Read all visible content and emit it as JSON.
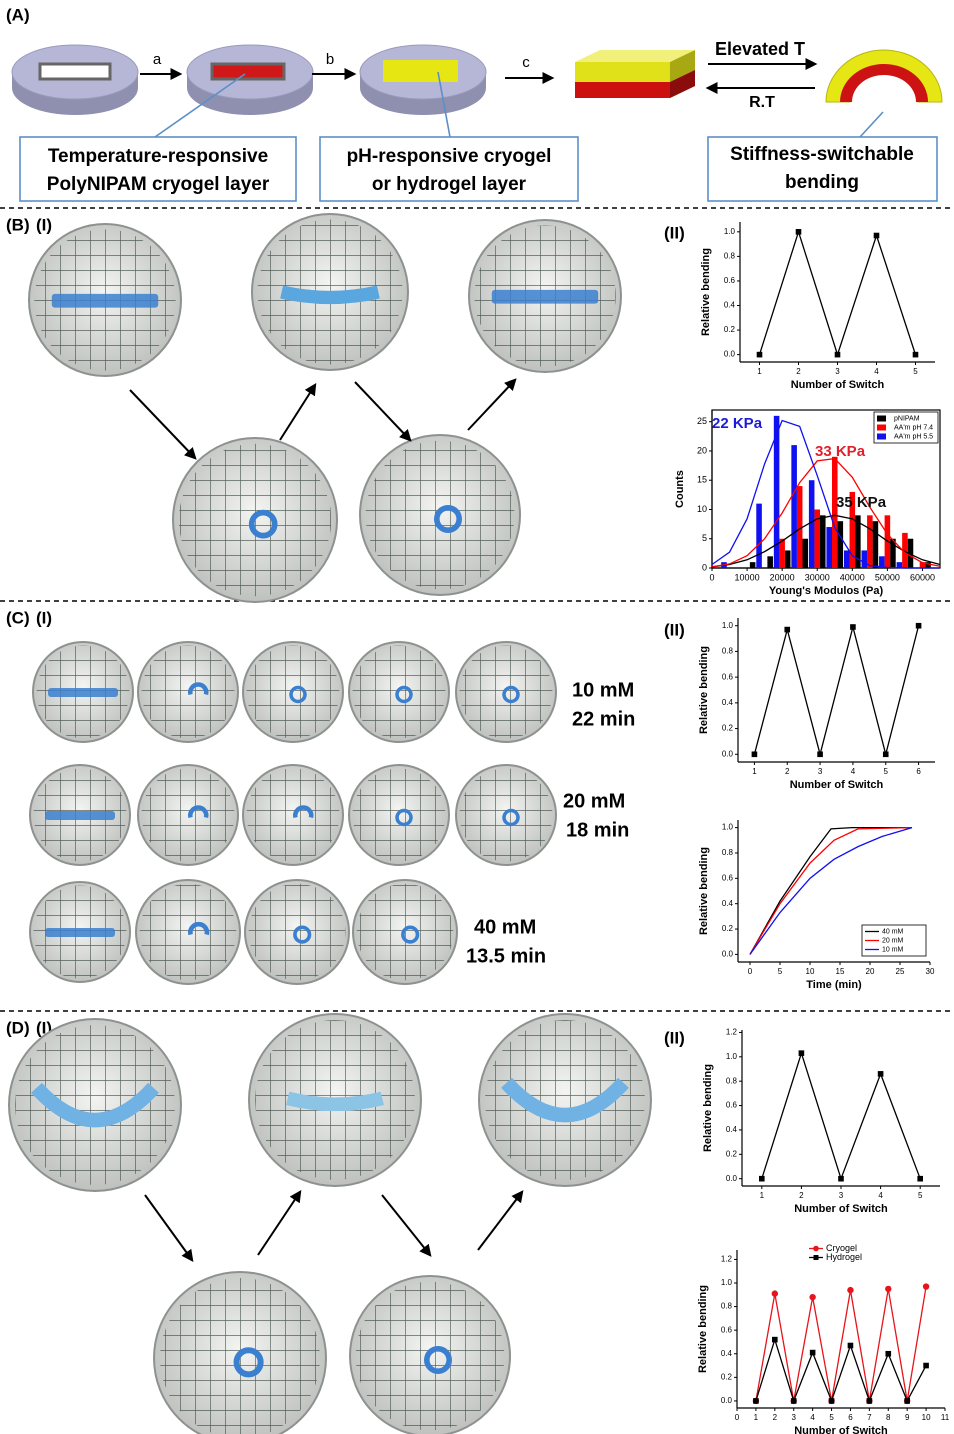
{
  "figure": {
    "panel_a": {
      "label": "(A)",
      "step_a": "a",
      "step_b": "b",
      "step_c": "c",
      "heat": "Elevated T",
      "cool": "R.T",
      "box1": [
        "Temperature-responsive",
        "PolyNIPAM cryogel layer"
      ],
      "box2": [
        "pH-responsive cryogel",
        "or hydrogel layer"
      ],
      "box3": [
        "Stiffness-switchable",
        "bending"
      ]
    },
    "panel_b": {
      "label": "(B)",
      "part1": "(I)",
      "part2": "(II)"
    },
    "panel_c": {
      "label": "(C)",
      "part1": "(I)",
      "part2": "(II)",
      "rows": [
        [
          "10 mM",
          "22 min"
        ],
        [
          "20 mM",
          "18 min"
        ],
        [
          "40 mM",
          "13.5 min"
        ]
      ]
    },
    "panel_d": {
      "label": "(D)",
      "part1": "(I)",
      "part2": "(II)"
    }
  },
  "chart_data": [
    {
      "type": "line",
      "xlabel": "Number of Switch",
      "ylabel": "Relative bending",
      "x": [
        1,
        2,
        3,
        4,
        5
      ],
      "series": [
        {
          "color": "#000000",
          "marker": "square",
          "values": [
            0,
            1,
            0,
            0.97,
            0
          ]
        }
      ],
      "xlim": [
        0.5,
        5.5
      ],
      "xticks": [
        1,
        2,
        3,
        4,
        5
      ],
      "ylim": [
        -0.06,
        1.08
      ],
      "yticks": [
        {
          "value": 0,
          "label": "0.0"
        },
        0.2,
        0.4,
        0.6,
        0.8,
        {
          "value": 1,
          "label": "1.0"
        }
      ]
    },
    {
      "type": "bar",
      "xlabel": "Young's Modulos (Pa)",
      "ylabel": "Counts",
      "legend": "upper right",
      "x": [
        5000,
        10000,
        15000,
        20000,
        25000,
        30000,
        35000,
        40000,
        45000,
        50000,
        55000,
        60000
      ],
      "series": [
        {
          "name": "pNIPAM",
          "color": "#000000",
          "values": [
            0,
            1,
            2,
            3,
            5,
            9,
            8,
            9,
            8,
            5,
            5,
            1
          ]
        },
        {
          "name": "AA'm pH 7.4",
          "color": "#ff0000",
          "values": [
            0,
            0,
            0,
            5,
            14,
            10,
            19,
            13,
            9,
            9,
            6,
            1
          ]
        },
        {
          "name": "AA'm pH 5.5",
          "color": "#1010f0",
          "values": [
            1,
            0,
            11,
            26,
            21,
            15,
            7,
            3,
            3,
            2,
            1,
            0
          ]
        }
      ],
      "fits": [
        {
          "color": "#000000",
          "x": [
            0,
            5000,
            10000,
            15000,
            20000,
            25000,
            30000,
            35000,
            40000,
            45000,
            50000,
            55000,
            60000,
            65000
          ],
          "values": [
            0.2,
            0.6,
            1.4,
            2.8,
            4.6,
            6.7,
            8.4,
            9,
            8.4,
            6.7,
            4.6,
            2.8,
            1.4,
            0.6
          ]
        },
        {
          "color": "#ff0000",
          "x": [
            0,
            5000,
            10000,
            15000,
            20000,
            25000,
            30000,
            35000,
            40000,
            45000,
            50000,
            55000,
            60000,
            65000
          ],
          "values": [
            0.2,
            0.7,
            2.1,
            5,
            9.4,
            14.6,
            18.3,
            18.7,
            15.5,
            10.4,
            5.8,
            2.6,
            0.9,
            0.3
          ]
        },
        {
          "color": "#1010f0",
          "x": [
            0,
            5000,
            10000,
            15000,
            20000,
            25000,
            30000,
            35000,
            40000,
            45000,
            50000,
            55000,
            60000,
            65000
          ],
          "values": [
            0.6,
            2.7,
            8.4,
            17.8,
            25.2,
            24.2,
            15.8,
            6.9,
            2.1,
            0.4,
            0.1,
            0,
            0,
            0
          ]
        }
      ],
      "annotations": [
        {
          "text": "22 KPa",
          "color": "#1c1cd6"
        },
        {
          "text": "33 KPa",
          "color": "#e0202a"
        },
        {
          "text": "35 KPa",
          "color": "#111111"
        }
      ],
      "xlim": [
        0,
        65000
      ],
      "xticks": [
        0,
        10000,
        20000,
        30000,
        40000,
        50000,
        60000
      ],
      "ylim": [
        0,
        27
      ],
      "yticks": [
        0,
        5,
        10,
        15,
        20,
        25
      ]
    },
    {
      "type": "line",
      "xlabel": "Number of Switch",
      "ylabel": "Relative bending",
      "x": [
        1,
        2,
        3,
        4,
        5,
        6
      ],
      "series": [
        {
          "color": "#000000",
          "marker": "square",
          "values": [
            0,
            0.97,
            0,
            0.99,
            0,
            1.0
          ]
        }
      ],
      "xlim": [
        0.5,
        6.5
      ],
      "xticks": [
        1,
        2,
        3,
        4,
        5,
        6
      ],
      "ylim": [
        -0.06,
        1.06
      ],
      "yticks": [
        {
          "value": 0,
          "label": "0.0"
        },
        0.2,
        0.4,
        0.6,
        0.8,
        {
          "value": 1,
          "label": "1.0"
        }
      ]
    },
    {
      "type": "line",
      "xlabel": "Time (min)",
      "ylabel": "Relative bending",
      "legend": "lower right",
      "series": [
        {
          "name": "40 mM",
          "color": "#000000",
          "x": [
            0,
            5,
            10,
            13.5,
            17,
            27
          ],
          "values": [
            0,
            0.42,
            0.77,
            0.99,
            1,
            1
          ]
        },
        {
          "name": "20 mM",
          "color": "#ff0000",
          "x": [
            0,
            5,
            10,
            14,
            18,
            27
          ],
          "values": [
            0,
            0.4,
            0.72,
            0.9,
            0.99,
            1
          ]
        },
        {
          "name": "10 mM",
          "color": "#1010f0",
          "x": [
            0,
            5,
            10,
            14,
            18,
            22,
            27
          ],
          "values": [
            0,
            0.33,
            0.6,
            0.75,
            0.85,
            0.93,
            1
          ]
        }
      ],
      "xlim": [
        -2,
        30
      ],
      "xticks": [
        0,
        5,
        10,
        15,
        20,
        25,
        30
      ],
      "ylim": [
        -0.06,
        1.06
      ],
      "yticks": [
        {
          "value": 0,
          "label": "0.0"
        },
        0.2,
        0.4,
        0.6,
        0.8,
        {
          "value": 1,
          "label": "1.0"
        }
      ]
    },
    {
      "type": "line",
      "xlabel": "Number of Switch",
      "ylabel": "Relative bending",
      "x": [
        1,
        2,
        3,
        4,
        5
      ],
      "series": [
        {
          "color": "#000000",
          "marker": "square",
          "values": [
            0,
            1.03,
            0,
            0.86,
            0
          ]
        }
      ],
      "xlim": [
        0.5,
        5.5
      ],
      "xticks": [
        1,
        2,
        3,
        4,
        5
      ],
      "ylim": [
        -0.06,
        1.22
      ],
      "yticks": [
        {
          "value": 0,
          "label": "0.0"
        },
        0.2,
        0.4,
        0.6,
        0.8,
        {
          "value": 1,
          "label": "1.0"
        },
        1.2
      ]
    },
    {
      "type": "line",
      "xlabel": "Number of Switch",
      "ylabel": "Relative bending",
      "legend": "upper center",
      "x": [
        1,
        2,
        3,
        4,
        5,
        6,
        7,
        8,
        9,
        10
      ],
      "series": [
        {
          "name": "Cryogel",
          "color": "#e8141b",
          "marker": "circle",
          "values": [
            0,
            0.91,
            0,
            0.88,
            0,
            0.94,
            0,
            0.95,
            0,
            0.97
          ]
        },
        {
          "name": "Hydrogel",
          "color": "#000000",
          "marker": "square",
          "values": [
            0,
            0.52,
            0,
            0.41,
            0,
            0.47,
            0,
            0.4,
            0,
            0.3
          ]
        }
      ],
      "xlim": [
        0,
        11
      ],
      "xticks": [
        0,
        1,
        2,
        3,
        4,
        5,
        6,
        7,
        8,
        9,
        10,
        11
      ],
      "ylim": [
        -0.06,
        1.28
      ],
      "yticks": [
        {
          "value": 0,
          "label": "0.0"
        },
        0.2,
        0.4,
        0.6,
        0.8,
        {
          "value": 1,
          "label": "1.0"
        },
        1.2
      ]
    }
  ]
}
